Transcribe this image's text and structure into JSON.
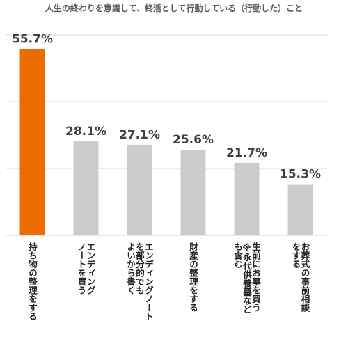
{
  "chart_data": {
    "type": "bar",
    "title": "人生の終わりを意識して、終活として行動している（行動した）こと",
    "categories": [
      [
        "持ち物の整理をする"
      ],
      [
        "エンディング",
        "ノートを買う"
      ],
      [
        "エンディングノート",
        "を部分的でも",
        "よいから書く"
      ],
      [
        "財産の整理をする"
      ],
      [
        "生前にお墓を買う",
        "※永代供養墓など",
        "も含む"
      ],
      [
        "お葬式の事前相談",
        "をする"
      ]
    ],
    "values": [
      55.7,
      28.1,
      27.1,
      25.6,
      21.7,
      15.3
    ],
    "value_labels": [
      "55.7%",
      "28.1%",
      "27.1%",
      "25.6%",
      "21.7%",
      "15.3%"
    ],
    "ylim": [
      0,
      60
    ],
    "grid": true,
    "colors": {
      "highlight": "#ed6c00",
      "default": "#cccccc",
      "grid": "#d9d9d9",
      "value_text": "#404040",
      "category_text": "#222222"
    }
  }
}
